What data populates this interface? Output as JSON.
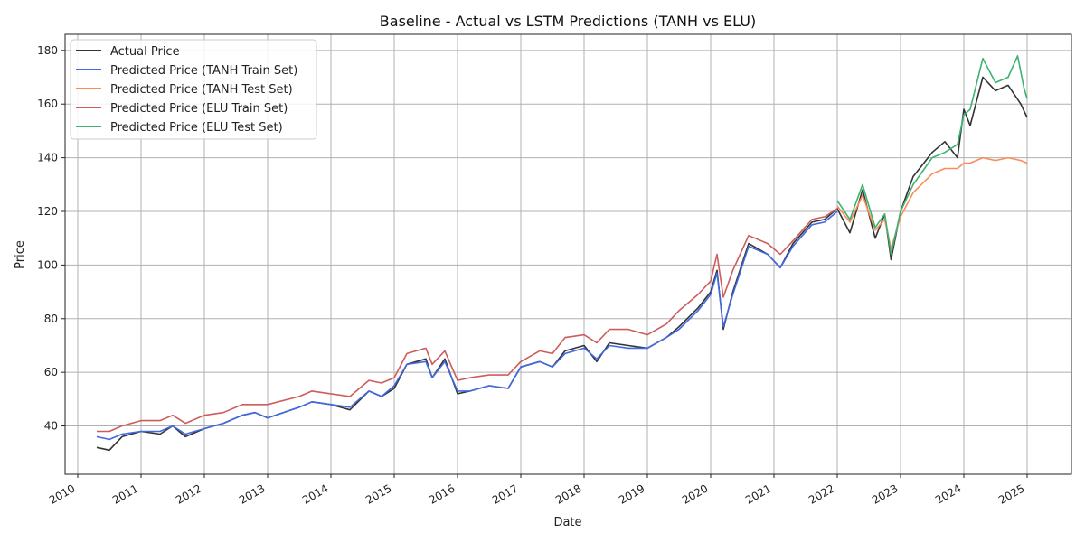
{
  "chart_data": {
    "type": "line",
    "title": "Baseline - Actual vs LSTM Predictions (TANH vs ELU)",
    "xlabel": "Date",
    "ylabel": "Price",
    "xlim": [
      2009.8,
      2025.7
    ],
    "ylim": [
      22,
      186
    ],
    "x_ticks": [
      "2010",
      "2011",
      "2012",
      "2013",
      "2014",
      "2015",
      "2016",
      "2017",
      "2018",
      "2019",
      "2020",
      "2021",
      "2022",
      "2023",
      "2024",
      "2025"
    ],
    "y_ticks": [
      40,
      60,
      80,
      100,
      120,
      140,
      160,
      180
    ],
    "grid": true,
    "legend_position": "upper-left",
    "series": [
      {
        "name": "Actual Price",
        "color": "#333333",
        "x": [
          2010.3,
          2010.5,
          2010.7,
          2011.0,
          2011.3,
          2011.5,
          2011.7,
          2012.0,
          2012.3,
          2012.6,
          2012.8,
          2013.0,
          2013.5,
          2013.7,
          2014.0,
          2014.3,
          2014.6,
          2014.8,
          2015.0,
          2015.2,
          2015.5,
          2015.6,
          2015.8,
          2016.0,
          2016.2,
          2016.5,
          2016.8,
          2017.0,
          2017.3,
          2017.5,
          2017.7,
          2018.0,
          2018.2,
          2018.4,
          2018.7,
          2019.0,
          2019.3,
          2019.5,
          2019.8,
          2020.0,
          2020.1,
          2020.2,
          2020.35,
          2020.6,
          2020.9,
          2021.1,
          2021.3,
          2021.6,
          2021.8,
          2022.0,
          2022.2,
          2022.4,
          2022.6,
          2022.75,
          2022.85,
          2023.0,
          2023.2,
          2023.5,
          2023.7,
          2023.9,
          2024.0,
          2024.1,
          2024.3,
          2024.5,
          2024.7,
          2024.9,
          2025.0
        ],
        "y": [
          32,
          31,
          36,
          38,
          37,
          40,
          36,
          39,
          41,
          44,
          45,
          43,
          47,
          49,
          48,
          46,
          53,
          51,
          54,
          63,
          65,
          58,
          65,
          52,
          53,
          55,
          54,
          62,
          64,
          62,
          68,
          70,
          64,
          71,
          70,
          69,
          73,
          77,
          84,
          90,
          98,
          76,
          90,
          108,
          104,
          99,
          108,
          116,
          117,
          121,
          112,
          128,
          110,
          119,
          102,
          120,
          133,
          142,
          146,
          140,
          158,
          152,
          170,
          165,
          167,
          160,
          155
        ]
      },
      {
        "name": "Predicted Price (TANH Train Set)",
        "color": "#4169e1",
        "x": [
          2010.3,
          2010.5,
          2010.7,
          2011.0,
          2011.3,
          2011.5,
          2011.7,
          2012.0,
          2012.3,
          2012.6,
          2012.8,
          2013.0,
          2013.5,
          2013.7,
          2014.0,
          2014.3,
          2014.6,
          2014.8,
          2015.0,
          2015.2,
          2015.5,
          2015.6,
          2015.8,
          2016.0,
          2016.2,
          2016.5,
          2016.8,
          2017.0,
          2017.3,
          2017.5,
          2017.7,
          2018.0,
          2018.2,
          2018.4,
          2018.7,
          2019.0,
          2019.3,
          2019.5,
          2019.8,
          2020.0,
          2020.1,
          2020.2,
          2020.35,
          2020.6,
          2020.9,
          2021.1,
          2021.3,
          2021.6,
          2021.8,
          2022.0
        ],
        "y": [
          36,
          35,
          37,
          38,
          38,
          40,
          37,
          39,
          41,
          44,
          45,
          43,
          47,
          49,
          48,
          47,
          53,
          51,
          55,
          63,
          64,
          58,
          64,
          53,
          53,
          55,
          54,
          62,
          64,
          62,
          67,
          69,
          65,
          70,
          69,
          69,
          73,
          76,
          83,
          89,
          97,
          77,
          89,
          107,
          104,
          99,
          107,
          115,
          116,
          120
        ]
      },
      {
        "name": "Predicted Price (TANH Test Set)",
        "color": "#fa8c5a",
        "x": [
          2022.0,
          2022.2,
          2022.4,
          2022.6,
          2022.75,
          2022.85,
          2023.0,
          2023.2,
          2023.5,
          2023.7,
          2023.9,
          2024.0,
          2024.1,
          2024.3,
          2024.5,
          2024.7,
          2024.9,
          2025.0
        ],
        "y": [
          122,
          116,
          126,
          113,
          117,
          106,
          118,
          127,
          134,
          136,
          136,
          138,
          138,
          140,
          139,
          140,
          139,
          138
        ]
      },
      {
        "name": "Predicted Price (ELU Train Set)",
        "color": "#cd5c5c",
        "x": [
          2010.3,
          2010.5,
          2010.7,
          2011.0,
          2011.3,
          2011.5,
          2011.7,
          2012.0,
          2012.3,
          2012.6,
          2012.8,
          2013.0,
          2013.5,
          2013.7,
          2014.0,
          2014.3,
          2014.6,
          2014.8,
          2015.0,
          2015.2,
          2015.5,
          2015.6,
          2015.8,
          2016.0,
          2016.2,
          2016.5,
          2016.8,
          2017.0,
          2017.3,
          2017.5,
          2017.7,
          2018.0,
          2018.2,
          2018.4,
          2018.7,
          2019.0,
          2019.3,
          2019.5,
          2019.8,
          2020.0,
          2020.1,
          2020.2,
          2020.35,
          2020.6,
          2020.9,
          2021.1,
          2021.3,
          2021.6,
          2021.8,
          2022.0
        ],
        "y": [
          38,
          38,
          40,
          42,
          42,
          44,
          41,
          44,
          45,
          48,
          48,
          48,
          51,
          53,
          52,
          51,
          57,
          56,
          58,
          67,
          69,
          63,
          68,
          57,
          58,
          59,
          59,
          64,
          68,
          67,
          73,
          74,
          71,
          76,
          76,
          74,
          78,
          83,
          89,
          94,
          104,
          88,
          98,
          111,
          108,
          104,
          109,
          117,
          118,
          121
        ]
      },
      {
        "name": "Predicted Price (ELU Test Set)",
        "color": "#3cb371",
        "x": [
          2022.0,
          2022.2,
          2022.4,
          2022.6,
          2022.75,
          2022.85,
          2023.0,
          2023.2,
          2023.5,
          2023.7,
          2023.9,
          2024.0,
          2024.1,
          2024.3,
          2024.5,
          2024.7,
          2024.85,
          2024.95,
          2025.0
        ],
        "y": [
          124,
          117,
          130,
          114,
          119,
          104,
          120,
          130,
          140,
          142,
          145,
          156,
          158,
          177,
          168,
          170,
          178,
          166,
          162
        ]
      }
    ]
  }
}
